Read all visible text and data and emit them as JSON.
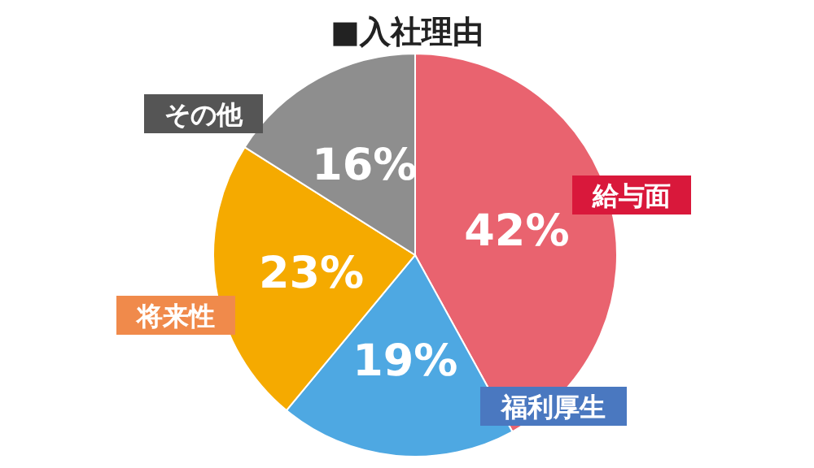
{
  "chart_data": {
    "type": "pie",
    "title": "■入社理由",
    "categories": [
      "給与面",
      "福利厚生",
      "将来性",
      "その他"
    ],
    "values": [
      42,
      19,
      23,
      16
    ],
    "colors": [
      "#e9636f",
      "#4ea8e2",
      "#f5aa00",
      "#8e8e8e"
    ],
    "value_labels": [
      "42%",
      "19%",
      "23%",
      "16%"
    ]
  }
}
